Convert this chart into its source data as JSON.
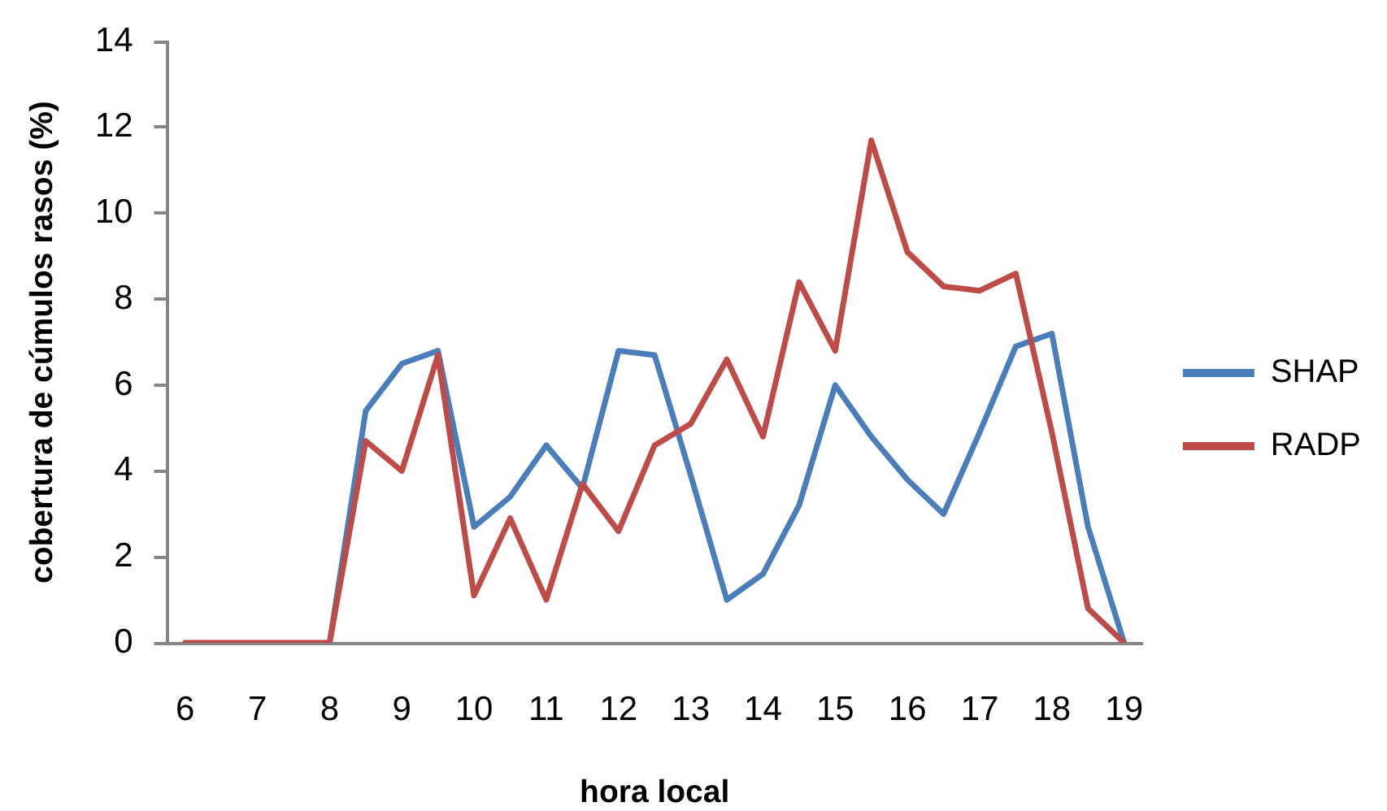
{
  "chart_data": {
    "type": "line",
    "xlabel": "hora local",
    "ylabel": "cobertura de cúmulos rasos (%)",
    "categories": [
      "6",
      null,
      "7",
      null,
      "8",
      null,
      "9",
      null,
      "10",
      null,
      "11",
      null,
      "12",
      null,
      "13",
      null,
      "14",
      null,
      "15",
      null,
      "16",
      null,
      "17",
      null,
      "18",
      null,
      "19"
    ],
    "series": [
      {
        "name": "SHAP",
        "color": "#4a7ebb",
        "values": [
          null,
          null,
          null,
          null,
          0,
          5.4,
          6.5,
          6.8,
          2.7,
          3.4,
          4.6,
          3.6,
          6.8,
          6.7,
          3.9,
          1.0,
          1.6,
          3.2,
          6.0,
          4.8,
          3.8,
          3.0,
          4.9,
          6.9,
          7.2,
          2.7,
          0
        ]
      },
      {
        "name": "RADP",
        "color": "#be4b48",
        "values": [
          0,
          0,
          0,
          0,
          0,
          4.7,
          4.0,
          6.7,
          1.1,
          2.9,
          1.0,
          3.7,
          2.6,
          4.6,
          5.1,
          6.6,
          4.8,
          8.4,
          6.8,
          11.7,
          9.1,
          8.3,
          8.2,
          8.6,
          4.9,
          0.8,
          0
        ]
      }
    ],
    "ylim": [
      0,
      14
    ],
    "yticks": [
      0,
      2,
      4,
      6,
      8,
      10,
      12,
      14
    ],
    "legend": "right"
  }
}
